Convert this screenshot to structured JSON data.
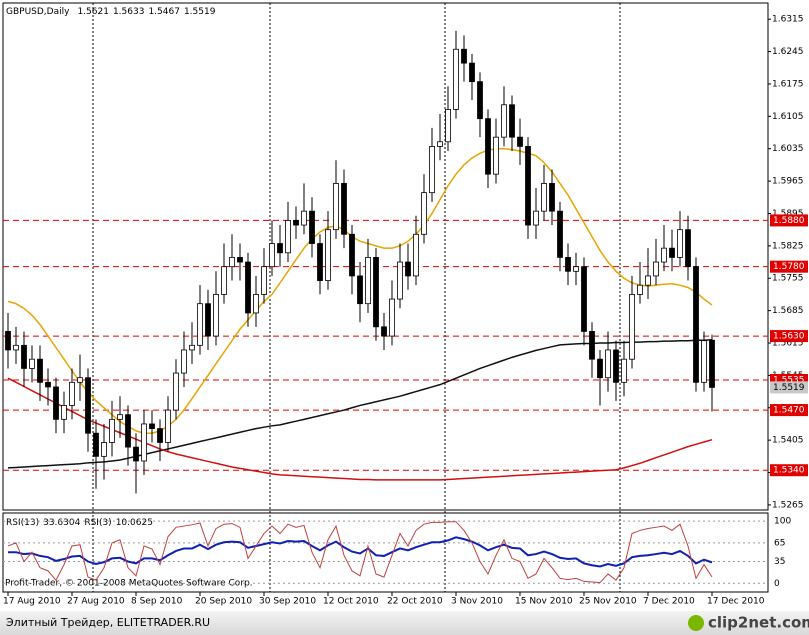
{
  "chart_data": [
    {
      "type": "candlestick",
      "title": "GBPUSD,Daily",
      "categories": [
        "17 Aug 2010",
        null,
        null,
        null,
        null,
        null,
        null,
        null,
        "27 Aug 2010",
        null,
        null,
        null,
        null,
        null,
        null,
        null,
        "8 Sep 2010",
        null,
        null,
        null,
        null,
        null,
        null,
        null,
        "20 Sep 2010",
        null,
        null,
        null,
        null,
        null,
        null,
        null,
        "30 Sep 2010",
        null,
        null,
        null,
        null,
        null,
        null,
        null,
        "12 Oct 2010",
        null,
        null,
        null,
        null,
        null,
        null,
        null,
        "22 Oct 2010",
        null,
        null,
        null,
        null,
        null,
        null,
        null,
        "3 Nov 2010",
        null,
        null,
        null,
        null,
        null,
        null,
        null,
        "15 Nov 2010",
        null,
        null,
        null,
        null,
        null,
        null,
        null,
        "25 Nov 2010",
        null,
        null,
        null,
        null,
        null,
        null,
        null,
        "7 Dec 2010",
        null,
        null,
        null,
        null,
        null,
        null,
        null,
        "17 Dec 2010"
      ],
      "open": [
        1.564,
        1.56,
        1.561,
        1.556,
        1.558,
        1.553,
        1.552,
        1.545,
        1.548,
        1.553,
        1.554,
        1.542,
        1.537,
        1.54,
        1.545,
        1.546,
        1.539,
        1.536,
        1.544,
        1.543,
        1.54,
        1.547,
        1.555,
        1.56,
        1.561,
        1.57,
        1.563,
        1.572,
        1.578,
        1.58,
        1.579,
        1.568,
        1.572,
        1.578,
        1.583,
        1.581,
        1.588,
        1.587,
        1.59,
        1.583,
        1.575,
        1.586,
        1.596,
        1.585,
        1.576,
        1.57,
        1.58,
        1.565,
        1.563,
        1.571,
        1.579,
        1.576,
        1.585,
        1.594,
        1.604,
        1.605,
        1.612,
        1.625,
        1.622,
        1.618,
        1.61,
        1.598,
        1.606,
        1.613,
        1.606,
        1.604,
        1.587,
        1.59,
        1.596,
        1.59,
        1.58,
        1.577,
        1.578,
        1.564,
        1.558,
        1.554,
        1.56,
        1.553,
        1.558,
        1.572,
        1.574,
        1.576,
        1.579,
        1.582,
        1.58,
        1.586,
        1.578,
        1.553,
        1.5621
      ],
      "high": [
        1.568,
        1.565,
        1.564,
        1.561,
        1.561,
        1.556,
        1.554,
        1.551,
        1.556,
        1.559,
        1.556,
        1.545,
        1.544,
        1.549,
        1.55,
        1.548,
        1.542,
        1.547,
        1.547,
        1.545,
        1.55,
        1.558,
        1.564,
        1.566,
        1.574,
        1.573,
        1.577,
        1.583,
        1.585,
        1.583,
        1.581,
        1.576,
        1.582,
        1.588,
        1.587,
        1.592,
        1.591,
        1.596,
        1.593,
        1.585,
        1.59,
        1.601,
        1.599,
        1.587,
        1.579,
        1.584,
        1.582,
        1.568,
        1.575,
        1.583,
        1.583,
        1.589,
        1.598,
        1.608,
        1.611,
        1.617,
        1.629,
        1.628,
        1.624,
        1.62,
        1.612,
        1.61,
        1.617,
        1.615,
        1.61,
        1.606,
        1.595,
        1.6,
        1.599,
        1.592,
        1.583,
        1.581,
        1.58,
        1.566,
        1.56,
        1.564,
        1.562,
        1.562,
        1.576,
        1.579,
        1.582,
        1.584,
        1.587,
        1.586,
        1.59,
        1.589,
        1.58,
        1.564,
        1.5633
      ],
      "low": [
        1.556,
        1.557,
        1.552,
        1.553,
        1.549,
        1.548,
        1.542,
        1.542,
        1.545,
        1.549,
        1.538,
        1.53,
        1.532,
        1.537,
        1.541,
        1.535,
        1.529,
        1.533,
        1.54,
        1.536,
        1.538,
        1.545,
        1.552,
        1.557,
        1.559,
        1.56,
        1.561,
        1.57,
        1.575,
        1.575,
        1.565,
        1.565,
        1.57,
        1.576,
        1.578,
        1.579,
        1.584,
        1.585,
        1.58,
        1.572,
        1.573,
        1.584,
        1.582,
        1.572,
        1.566,
        1.568,
        1.562,
        1.56,
        1.561,
        1.569,
        1.573,
        1.574,
        1.583,
        1.592,
        1.601,
        1.603,
        1.61,
        1.618,
        1.614,
        1.606,
        1.595,
        1.596,
        1.604,
        1.603,
        1.6,
        1.584,
        1.584,
        1.588,
        1.587,
        1.577,
        1.574,
        1.574,
        1.561,
        1.554,
        1.548,
        1.551,
        1.549,
        1.55,
        1.556,
        1.57,
        1.571,
        1.574,
        1.577,
        1.577,
        1.578,
        1.575,
        1.551,
        1.551,
        1.5467
      ],
      "close": [
        1.56,
        1.561,
        1.556,
        1.558,
        1.553,
        1.552,
        1.545,
        1.548,
        1.553,
        1.554,
        1.542,
        1.537,
        1.54,
        1.545,
        1.546,
        1.539,
        1.536,
        1.544,
        1.543,
        1.54,
        1.547,
        1.555,
        1.56,
        1.561,
        1.57,
        1.563,
        1.572,
        1.578,
        1.58,
        1.579,
        1.568,
        1.572,
        1.578,
        1.583,
        1.581,
        1.588,
        1.587,
        1.59,
        1.583,
        1.575,
        1.586,
        1.596,
        1.585,
        1.576,
        1.57,
        1.58,
        1.565,
        1.563,
        1.571,
        1.579,
        1.576,
        1.585,
        1.594,
        1.604,
        1.605,
        1.612,
        1.625,
        1.622,
        1.618,
        1.61,
        1.598,
        1.606,
        1.613,
        1.606,
        1.604,
        1.587,
        1.59,
        1.596,
        1.59,
        1.58,
        1.577,
        1.578,
        1.564,
        1.558,
        1.554,
        1.56,
        1.553,
        1.558,
        1.572,
        1.574,
        1.576,
        1.579,
        1.582,
        1.58,
        1.586,
        1.578,
        1.553,
        1.562,
        1.5519
      ],
      "series": [
        {
          "color": "#e8a400",
          "values": [
            1.5705,
            1.57,
            1.569,
            1.5675,
            1.5655,
            1.563,
            1.5605,
            1.558,
            1.5555,
            1.553,
            1.551,
            1.549,
            1.5475,
            1.546,
            1.5445,
            1.5435,
            1.5425,
            1.542,
            1.542,
            1.5425,
            1.5435,
            1.545,
            1.547,
            1.5495,
            1.552,
            1.5545,
            1.557,
            1.5595,
            1.562,
            1.5645,
            1.5665,
            1.5685,
            1.5705,
            1.572,
            1.5745,
            1.577,
            1.5795,
            1.582,
            1.584,
            1.5855,
            1.5865,
            1.5868,
            1.586,
            1.5845,
            1.5835,
            1.583,
            1.5825,
            1.582,
            1.582,
            1.5825,
            1.5835,
            1.585,
            1.587,
            1.5895,
            1.5925,
            1.5955,
            1.598,
            1.6,
            1.6015,
            1.6025,
            1.6032,
            1.6035,
            1.6035,
            1.6033,
            1.603,
            1.6025,
            1.602,
            1.6005,
            1.5985,
            1.596,
            1.5935,
            1.5905,
            1.5875,
            1.5845,
            1.5815,
            1.579,
            1.577,
            1.5755,
            1.5745,
            1.574,
            1.5738,
            1.574,
            1.5742,
            1.5743,
            1.574,
            1.5735,
            1.5725,
            1.571,
            1.5697
          ]
        },
        {
          "color": "#111111",
          "values": [
            1.5345,
            1.5346,
            1.5347,
            1.5348,
            1.5349,
            1.535,
            1.5351,
            1.5352,
            1.5353,
            1.5354,
            1.5356,
            1.5357,
            1.5358,
            1.536,
            1.5362,
            1.5366,
            1.537,
            1.5374,
            1.5378,
            1.5382,
            1.5386,
            1.539,
            1.5394,
            1.5398,
            1.5402,
            1.5406,
            1.541,
            1.5414,
            1.5418,
            1.5422,
            1.5426,
            1.543,
            1.5433,
            1.5436,
            1.5438,
            1.5442,
            1.5446,
            1.545,
            1.5454,
            1.5458,
            1.5462,
            1.5466,
            1.547,
            1.5475,
            1.548,
            1.5484,
            1.5488,
            1.5492,
            1.5496,
            1.55,
            1.5505,
            1.551,
            1.5515,
            1.552,
            1.5525,
            1.5532,
            1.5539,
            1.5546,
            1.5553,
            1.556,
            1.5566,
            1.5572,
            1.5578,
            1.5584,
            1.5589,
            1.5594,
            1.5599,
            1.5603,
            1.5607,
            1.5611,
            1.5612,
            1.5613,
            1.5614,
            1.5614,
            1.5615,
            1.5615,
            1.5616,
            1.5616,
            1.5617,
            1.5617,
            1.5618,
            1.5618,
            1.5619,
            1.5619,
            1.562,
            1.562,
            1.5621,
            1.5621,
            1.5622
          ]
        },
        {
          "color": "#d01010",
          "values": [
            1.5539,
            1.553,
            1.5521,
            1.5512,
            1.5503,
            1.5494,
            1.5485,
            1.5476,
            1.5467,
            1.5458,
            1.5449,
            1.5442,
            1.5435,
            1.5428,
            1.5421,
            1.5414,
            1.5407,
            1.54,
            1.5393,
            1.5386,
            1.538,
            1.5375,
            1.5371,
            1.5367,
            1.5363,
            1.5359,
            1.5355,
            1.5351,
            1.5347,
            1.5344,
            1.5341,
            1.5338,
            1.5335,
            1.5332,
            1.533,
            1.5329,
            1.5328,
            1.5327,
            1.5326,
            1.5325,
            1.5324,
            1.5323,
            1.5322,
            1.5321,
            1.532,
            1.532,
            1.5319,
            1.5319,
            1.5319,
            1.5319,
            1.5319,
            1.5319,
            1.5319,
            1.5319,
            1.5319,
            1.532,
            1.5321,
            1.5322,
            1.5323,
            1.5324,
            1.5325,
            1.5326,
            1.5327,
            1.5328,
            1.5329,
            1.533,
            1.5331,
            1.5332,
            1.5333,
            1.5334,
            1.5335,
            1.5336,
            1.5337,
            1.5338,
            1.5339,
            1.534,
            1.5341,
            1.5345,
            1.535,
            1.5355,
            1.5361,
            1.5367,
            1.5373,
            1.5379,
            1.5385,
            1.5391,
            1.5396,
            1.5401,
            1.5406
          ]
        }
      ],
      "levels": [
        {
          "value": 1.588,
          "label": "1.5880"
        },
        {
          "value": 1.578,
          "label": "1.5780"
        },
        {
          "value": 1.563,
          "label": "1.5630"
        },
        1.5535,
        {
          "value": 1.547,
          "label": "1.5470"
        },
        {
          "value": 1.534,
          "label": "1.5340"
        }
      ],
      "level_color": "#e00000",
      "ylim": [
        1.5254,
        1.635
      ],
      "yticks": [
        1.6315,
        1.6245,
        1.6175,
        1.6105,
        1.6035,
        1.5965,
        1.5895,
        1.5825,
        1.5755,
        1.5685,
        1.5615,
        1.5545,
        1.5475,
        1.5405,
        1.5335,
        1.5265
      ]
    },
    {
      "type": "line",
      "series": [
        {
          "name": "RSI(13)",
          "color": "#1020b0",
          "values": [
            50,
            50,
            47,
            48,
            44,
            42,
            36,
            39,
            43,
            44,
            35,
            31,
            34,
            40,
            41,
            35,
            32,
            40,
            40,
            37,
            45,
            52,
            56,
            56,
            62,
            55,
            62,
            66,
            67,
            66,
            57,
            60,
            63,
            66,
            64,
            68,
            67,
            68,
            60,
            53,
            61,
            67,
            58,
            51,
            48,
            56,
            45,
            44,
            50,
            56,
            53,
            58,
            62,
            66,
            66,
            69,
            74,
            71,
            67,
            61,
            53,
            58,
            62,
            57,
            56,
            45,
            47,
            51,
            47,
            41,
            39,
            40,
            32,
            29,
            27,
            31,
            28,
            32,
            42,
            44,
            45,
            47,
            49,
            47,
            52,
            44,
            32,
            38,
            33.6304
          ]
        },
        {
          "name": "RSI(3)",
          "color": "#c04040",
          "values": [
            60,
            65,
            35,
            50,
            25,
            20,
            5,
            30,
            60,
            62,
            10,
            5,
            25,
            65,
            70,
            25,
            12,
            60,
            55,
            30,
            75,
            90,
            92,
            94,
            97,
            60,
            88,
            95,
            96,
            90,
            40,
            60,
            80,
            92,
            80,
            95,
            90,
            93,
            50,
            25,
            70,
            92,
            45,
            20,
            12,
            60,
            15,
            10,
            45,
            80,
            60,
            85,
            95,
            98,
            98,
            99,
            99,
            85,
            65,
            35,
            15,
            45,
            70,
            40,
            35,
            8,
            15,
            40,
            25,
            8,
            6,
            8,
            3,
            2,
            1,
            15,
            5,
            25,
            80,
            85,
            88,
            90,
            92,
            85,
            95,
            60,
            8,
            30,
            10.0625
          ]
        }
      ],
      "ylim": [
        -14,
        113
      ],
      "yticks": [
        100,
        65,
        35,
        0
      ],
      "annotation": "Profit-Trader, © 2001-2008 MetaQuotes Software Corp."
    }
  ],
  "footer": {
    "site": "Элитный Трейдер, ELITETRADER.RU",
    "logo": "clip2net.com"
  }
}
